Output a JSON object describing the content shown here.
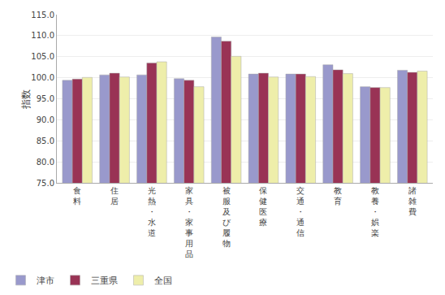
{
  "chart_data": {
    "type": "bar",
    "categories": [
      "食料",
      "住居",
      "光熱・水道",
      "家具・家事用品",
      "被服及び履物",
      "保健医療",
      "交通・通信",
      "教育",
      "教養・娯楽",
      "諸雑費"
    ],
    "series": [
      {
        "name": "津市",
        "color": "#9999cc",
        "values": [
          99.4,
          100.7,
          100.7,
          99.8,
          109.7,
          100.9,
          100.9,
          103.1,
          97.9,
          101.8
        ]
      },
      {
        "name": "三重県",
        "color": "#993355",
        "values": [
          99.7,
          101.1,
          103.5,
          99.4,
          108.7,
          101.1,
          100.9,
          101.9,
          97.7,
          101.3
        ]
      },
      {
        "name": "全国",
        "color": "#eeeeaa",
        "values": [
          100.1,
          100.2,
          103.8,
          97.9,
          105.1,
          100.2,
          100.3,
          101.0,
          97.7,
          101.6
        ]
      }
    ],
    "ylabel": "指数",
    "ylim": [
      75.0,
      115.0
    ],
    "yticks": [
      {
        "value": 75.0,
        "label": "75.0"
      },
      {
        "value": 80.0,
        "label": "80.0"
      },
      {
        "value": 85.0,
        "label": "85.0"
      },
      {
        "value": 90.0,
        "label": "90.0"
      },
      {
        "value": 95.0,
        "label": "95.0"
      },
      {
        "value": 100.0,
        "label": "100.0"
      },
      {
        "value": 105.0,
        "label": "105.0"
      },
      {
        "value": 110.0,
        "label": "110.0"
      },
      {
        "value": 115.0,
        "label": "115.0"
      }
    ],
    "grid": true,
    "legend": "lower left"
  }
}
